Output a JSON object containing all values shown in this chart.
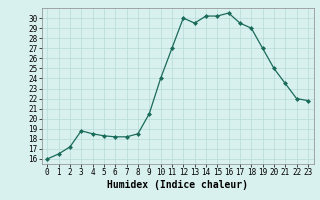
{
  "x": [
    0,
    1,
    2,
    3,
    4,
    5,
    6,
    7,
    8,
    9,
    10,
    11,
    12,
    13,
    14,
    15,
    16,
    17,
    18,
    19,
    20,
    21,
    22,
    23
  ],
  "y": [
    16,
    16.5,
    17.2,
    18.8,
    18.5,
    18.3,
    18.2,
    18.2,
    18.5,
    20.5,
    24.0,
    27.0,
    30.0,
    29.5,
    30.2,
    30.2,
    30.5,
    29.5,
    29.0,
    27.0,
    25.0,
    23.5,
    22.0,
    21.8
  ],
  "line_color": "#1a6b5a",
  "marker": "D",
  "markersize": 2.0,
  "bg_color": "#d8f0ee",
  "grid_color": "#b8dbd8",
  "xlabel": "Humidex (Indice chaleur)",
  "ylim": [
    15.5,
    31.0
  ],
  "xlim": [
    -0.5,
    23.5
  ],
  "yticks": [
    16,
    17,
    18,
    19,
    20,
    21,
    22,
    23,
    24,
    25,
    26,
    27,
    28,
    29,
    30
  ],
  "xticks": [
    0,
    1,
    2,
    3,
    4,
    5,
    6,
    7,
    8,
    9,
    10,
    11,
    12,
    13,
    14,
    15,
    16,
    17,
    18,
    19,
    20,
    21,
    22,
    23
  ],
  "tick_fontsize": 5.5,
  "xlabel_fontsize": 7.0,
  "linewidth": 0.9
}
